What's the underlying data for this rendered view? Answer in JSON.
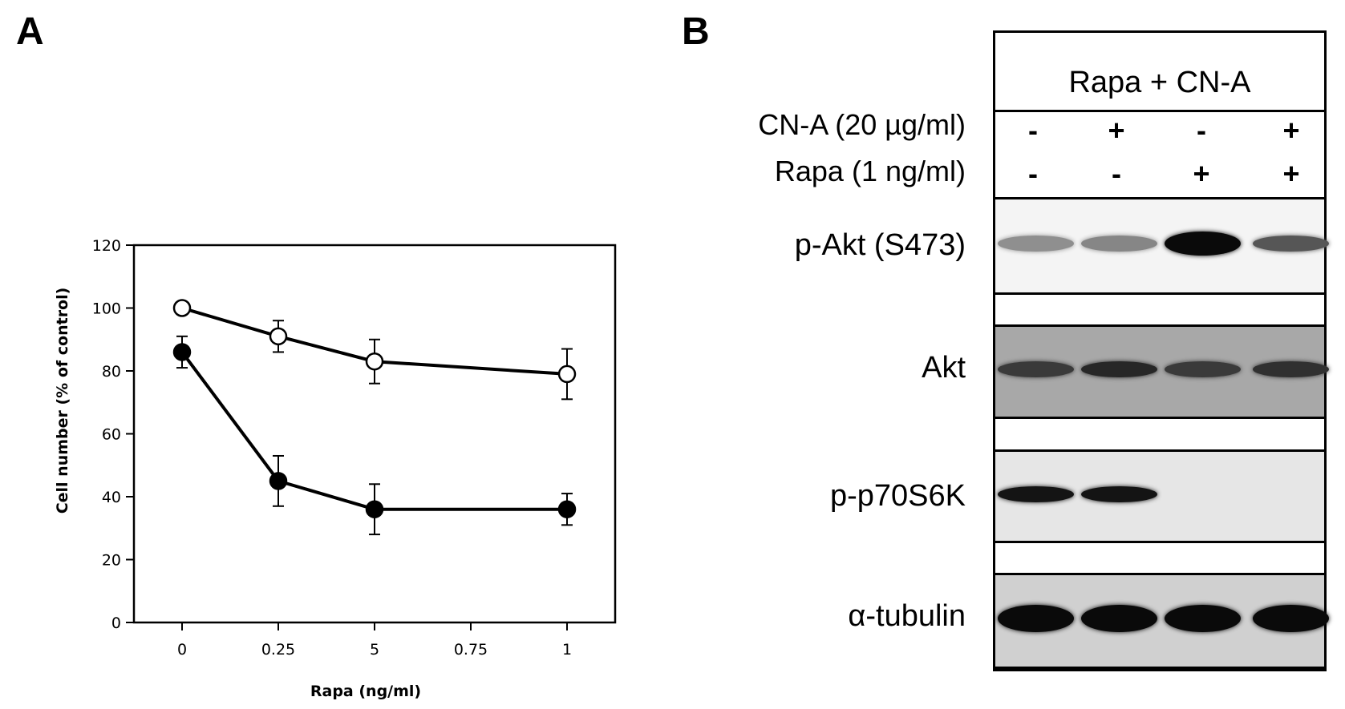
{
  "panel_a": {
    "letter": "A",
    "chart_data": {
      "type": "line",
      "xlabel": "Rapa (ng/ml)",
      "ylabel": "Cell number (% of control)",
      "x_categories": [
        "0",
        "0.25",
        "5",
        "0.75",
        "1"
      ],
      "ylim": [
        0,
        120
      ],
      "yticks": [
        0,
        20,
        40,
        60,
        80,
        100,
        120
      ],
      "grid": false,
      "series": [
        {
          "marker": "open-circle",
          "x_index": [
            0,
            1,
            2,
            4
          ],
          "values": [
            100,
            91,
            83,
            79
          ],
          "errors": [
            0,
            5,
            7,
            8
          ]
        },
        {
          "marker": "filled-circle",
          "x_index": [
            0,
            1,
            2,
            4
          ],
          "values": [
            86,
            45,
            36,
            36
          ],
          "errors": [
            5,
            8,
            8,
            5
          ]
        }
      ]
    }
  },
  "panel_b": {
    "letter": "B",
    "header": "Rapa + CN-A",
    "treatments": [
      {
        "label": "CN-A (20 µg/ml)",
        "signs": [
          "-",
          "+",
          "-",
          "+"
        ]
      },
      {
        "label": "Rapa (1 ng/ml)",
        "signs": [
          "-",
          "-",
          "+",
          "+"
        ]
      }
    ],
    "blots": [
      {
        "label": "p-Akt (S473)",
        "background": "#f4f4f4",
        "band_intensity": [
          0.3,
          0.35,
          1.0,
          0.6
        ]
      },
      {
        "label": "Akt",
        "background": "#a8a8a8",
        "band_intensity": [
          0.75,
          0.85,
          0.75,
          0.8
        ]
      },
      {
        "label": "p-p70S6K",
        "background": "#e6e6e6",
        "band_intensity": [
          0.95,
          0.95,
          0,
          0
        ]
      },
      {
        "label": "α-tubulin",
        "background": "#d0d0d0",
        "band_intensity": [
          1.0,
          1.0,
          1.0,
          1.0
        ]
      }
    ]
  }
}
